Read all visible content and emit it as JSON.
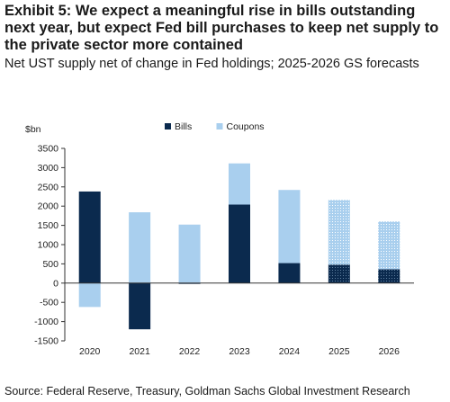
{
  "title": "Exhibit 5: We expect a meaningful rise in bills outstanding next year, but expect Fed bill purchases to keep net supply to the private sector more contained",
  "subtitle": "Net UST supply net of change in Fed holdings; 2025-2026 GS forecasts",
  "source": "Source: Federal Reserve, Treasury, Goldman Sachs Global Investment Research",
  "chart_data": {
    "type": "bar",
    "stacked": true,
    "ylabel": "$bn",
    "ylim": [
      -1500,
      3500
    ],
    "yticks": [
      3500,
      3000,
      2500,
      2000,
      1500,
      1000,
      500,
      0,
      -500,
      -1000,
      -1500
    ],
    "categories": [
      "2020",
      "2021",
      "2022",
      "2023",
      "2024",
      "2025",
      "2026"
    ],
    "forecast_categories": [
      "2025",
      "2026"
    ],
    "legend_position": "top-center",
    "grid": false,
    "series": [
      {
        "name": "Bills",
        "color": "#0b2a4e",
        "values": [
          2380,
          -1200,
          -20,
          2040,
          520,
          480,
          360
        ]
      },
      {
        "name": "Coupons",
        "color": "#a9cfee",
        "values": [
          -620,
          1840,
          1520,
          1070,
          1900,
          1680,
          1240
        ]
      }
    ]
  }
}
